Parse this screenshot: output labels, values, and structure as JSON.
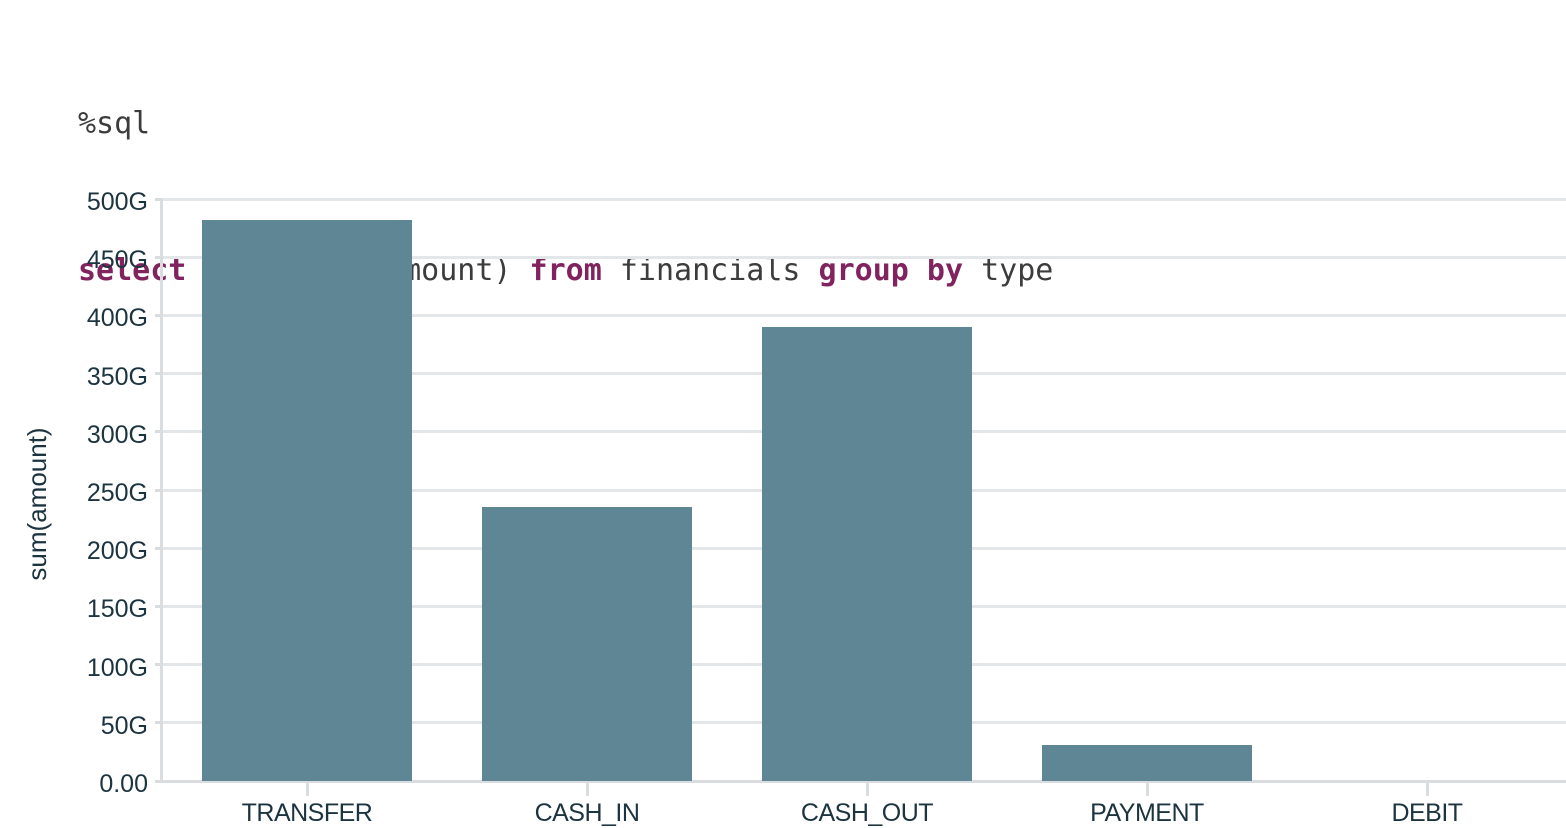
{
  "code": {
    "magic": "%sql",
    "tokens": [
      {
        "text": "select",
        "kind": "keyword"
      },
      {
        "text": " type, sum(amount) ",
        "kind": "plain"
      },
      {
        "text": "from",
        "kind": "keyword"
      },
      {
        "text": " financials ",
        "kind": "plain"
      },
      {
        "text": "group by",
        "kind": "keyword"
      },
      {
        "text": " type",
        "kind": "plain"
      }
    ]
  },
  "chart_data": {
    "type": "bar",
    "title": "",
    "xlabel": "",
    "ylabel": "sum(amount)",
    "categories": [
      "TRANSFER",
      "CASH_IN",
      "CASH_OUT",
      "PAYMENT",
      "DEBIT"
    ],
    "values": [
      482,
      235,
      390,
      31,
      0.2
    ],
    "value_unit": "G",
    "ylim": [
      0,
      500
    ],
    "ytick_step": 50,
    "ytick_labels": [
      "0.00",
      "50G",
      "100G",
      "150G",
      "200G",
      "250G",
      "300G",
      "350G",
      "400G",
      "450G",
      "500G"
    ],
    "grid": true,
    "legend": "none",
    "bar_color": "#5f8695"
  },
  "colors": {
    "sql_keyword": "#81235f",
    "code_text": "#3c3c3c",
    "axis_text": "#1c3440",
    "gridline": "#e4e7e9",
    "axis_line": "#d9dde0",
    "bar": "#5f8695",
    "background": "#ffffff"
  }
}
